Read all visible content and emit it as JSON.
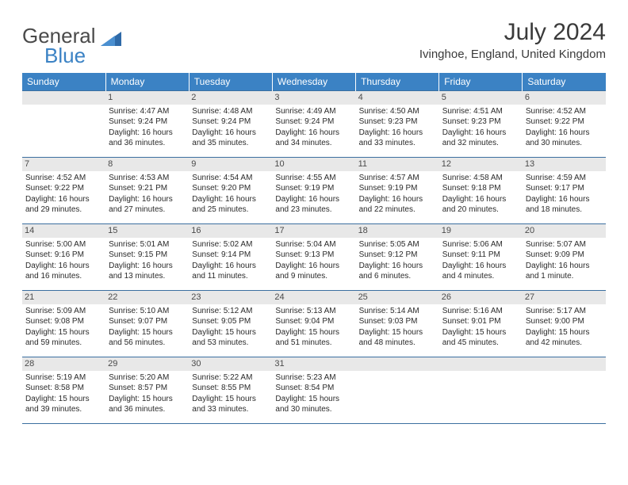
{
  "logo": {
    "general": "General",
    "blue": "Blue"
  },
  "title": "July 2024",
  "location": "Ivinghoe, England, United Kingdom",
  "colors": {
    "header_bg": "#3b82c4",
    "header_text": "#ffffff",
    "row_border": "#3b6fa0",
    "daynum_bg": "#e8e8e8",
    "text": "#2a2a2a",
    "title_text": "#3a3a3a"
  },
  "weekdays": [
    "Sunday",
    "Monday",
    "Tuesday",
    "Wednesday",
    "Thursday",
    "Friday",
    "Saturday"
  ],
  "weeks": [
    [
      null,
      {
        "n": "1",
        "sr": "Sunrise: 4:47 AM",
        "ss": "Sunset: 9:24 PM",
        "d1": "Daylight: 16 hours",
        "d2": "and 36 minutes."
      },
      {
        "n": "2",
        "sr": "Sunrise: 4:48 AM",
        "ss": "Sunset: 9:24 PM",
        "d1": "Daylight: 16 hours",
        "d2": "and 35 minutes."
      },
      {
        "n": "3",
        "sr": "Sunrise: 4:49 AM",
        "ss": "Sunset: 9:24 PM",
        "d1": "Daylight: 16 hours",
        "d2": "and 34 minutes."
      },
      {
        "n": "4",
        "sr": "Sunrise: 4:50 AM",
        "ss": "Sunset: 9:23 PM",
        "d1": "Daylight: 16 hours",
        "d2": "and 33 minutes."
      },
      {
        "n": "5",
        "sr": "Sunrise: 4:51 AM",
        "ss": "Sunset: 9:23 PM",
        "d1": "Daylight: 16 hours",
        "d2": "and 32 minutes."
      },
      {
        "n": "6",
        "sr": "Sunrise: 4:52 AM",
        "ss": "Sunset: 9:22 PM",
        "d1": "Daylight: 16 hours",
        "d2": "and 30 minutes."
      }
    ],
    [
      {
        "n": "7",
        "sr": "Sunrise: 4:52 AM",
        "ss": "Sunset: 9:22 PM",
        "d1": "Daylight: 16 hours",
        "d2": "and 29 minutes."
      },
      {
        "n": "8",
        "sr": "Sunrise: 4:53 AM",
        "ss": "Sunset: 9:21 PM",
        "d1": "Daylight: 16 hours",
        "d2": "and 27 minutes."
      },
      {
        "n": "9",
        "sr": "Sunrise: 4:54 AM",
        "ss": "Sunset: 9:20 PM",
        "d1": "Daylight: 16 hours",
        "d2": "and 25 minutes."
      },
      {
        "n": "10",
        "sr": "Sunrise: 4:55 AM",
        "ss": "Sunset: 9:19 PM",
        "d1": "Daylight: 16 hours",
        "d2": "and 23 minutes."
      },
      {
        "n": "11",
        "sr": "Sunrise: 4:57 AM",
        "ss": "Sunset: 9:19 PM",
        "d1": "Daylight: 16 hours",
        "d2": "and 22 minutes."
      },
      {
        "n": "12",
        "sr": "Sunrise: 4:58 AM",
        "ss": "Sunset: 9:18 PM",
        "d1": "Daylight: 16 hours",
        "d2": "and 20 minutes."
      },
      {
        "n": "13",
        "sr": "Sunrise: 4:59 AM",
        "ss": "Sunset: 9:17 PM",
        "d1": "Daylight: 16 hours",
        "d2": "and 18 minutes."
      }
    ],
    [
      {
        "n": "14",
        "sr": "Sunrise: 5:00 AM",
        "ss": "Sunset: 9:16 PM",
        "d1": "Daylight: 16 hours",
        "d2": "and 16 minutes."
      },
      {
        "n": "15",
        "sr": "Sunrise: 5:01 AM",
        "ss": "Sunset: 9:15 PM",
        "d1": "Daylight: 16 hours",
        "d2": "and 13 minutes."
      },
      {
        "n": "16",
        "sr": "Sunrise: 5:02 AM",
        "ss": "Sunset: 9:14 PM",
        "d1": "Daylight: 16 hours",
        "d2": "and 11 minutes."
      },
      {
        "n": "17",
        "sr": "Sunrise: 5:04 AM",
        "ss": "Sunset: 9:13 PM",
        "d1": "Daylight: 16 hours",
        "d2": "and 9 minutes."
      },
      {
        "n": "18",
        "sr": "Sunrise: 5:05 AM",
        "ss": "Sunset: 9:12 PM",
        "d1": "Daylight: 16 hours",
        "d2": "and 6 minutes."
      },
      {
        "n": "19",
        "sr": "Sunrise: 5:06 AM",
        "ss": "Sunset: 9:11 PM",
        "d1": "Daylight: 16 hours",
        "d2": "and 4 minutes."
      },
      {
        "n": "20",
        "sr": "Sunrise: 5:07 AM",
        "ss": "Sunset: 9:09 PM",
        "d1": "Daylight: 16 hours",
        "d2": "and 1 minute."
      }
    ],
    [
      {
        "n": "21",
        "sr": "Sunrise: 5:09 AM",
        "ss": "Sunset: 9:08 PM",
        "d1": "Daylight: 15 hours",
        "d2": "and 59 minutes."
      },
      {
        "n": "22",
        "sr": "Sunrise: 5:10 AM",
        "ss": "Sunset: 9:07 PM",
        "d1": "Daylight: 15 hours",
        "d2": "and 56 minutes."
      },
      {
        "n": "23",
        "sr": "Sunrise: 5:12 AM",
        "ss": "Sunset: 9:05 PM",
        "d1": "Daylight: 15 hours",
        "d2": "and 53 minutes."
      },
      {
        "n": "24",
        "sr": "Sunrise: 5:13 AM",
        "ss": "Sunset: 9:04 PM",
        "d1": "Daylight: 15 hours",
        "d2": "and 51 minutes."
      },
      {
        "n": "25",
        "sr": "Sunrise: 5:14 AM",
        "ss": "Sunset: 9:03 PM",
        "d1": "Daylight: 15 hours",
        "d2": "and 48 minutes."
      },
      {
        "n": "26",
        "sr": "Sunrise: 5:16 AM",
        "ss": "Sunset: 9:01 PM",
        "d1": "Daylight: 15 hours",
        "d2": "and 45 minutes."
      },
      {
        "n": "27",
        "sr": "Sunrise: 5:17 AM",
        "ss": "Sunset: 9:00 PM",
        "d1": "Daylight: 15 hours",
        "d2": "and 42 minutes."
      }
    ],
    [
      {
        "n": "28",
        "sr": "Sunrise: 5:19 AM",
        "ss": "Sunset: 8:58 PM",
        "d1": "Daylight: 15 hours",
        "d2": "and 39 minutes."
      },
      {
        "n": "29",
        "sr": "Sunrise: 5:20 AM",
        "ss": "Sunset: 8:57 PM",
        "d1": "Daylight: 15 hours",
        "d2": "and 36 minutes."
      },
      {
        "n": "30",
        "sr": "Sunrise: 5:22 AM",
        "ss": "Sunset: 8:55 PM",
        "d1": "Daylight: 15 hours",
        "d2": "and 33 minutes."
      },
      {
        "n": "31",
        "sr": "Sunrise: 5:23 AM",
        "ss": "Sunset: 8:54 PM",
        "d1": "Daylight: 15 hours",
        "d2": "and 30 minutes."
      },
      null,
      null,
      null
    ]
  ]
}
